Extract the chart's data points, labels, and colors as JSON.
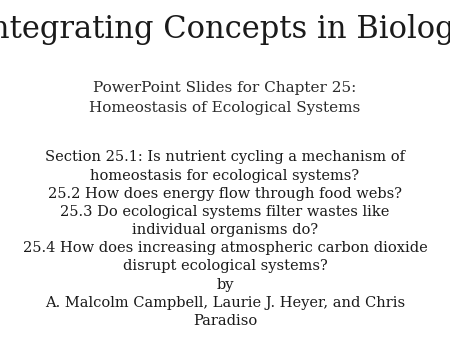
{
  "background_color": "#ffffff",
  "title": "Integrating Concepts in Biology",
  "title_fontsize": 22,
  "title_color": "#1a1a1a",
  "subtitle_line1": "PowerPoint Slides for Chapter 25:",
  "subtitle_line2": "Homeostasis of Ecological Systems",
  "subtitle_fontsize": 11,
  "subtitle_color": "#2a2a2a",
  "body_lines": [
    "Section 25.1: Is nutrient cycling a mechanism of",
    "homeostasis for ecological systems?",
    "25.2 How does energy flow through food webs?",
    "25.3 Do ecological systems filter wastes like",
    "individual organisms do?",
    "25.4 How does increasing atmospheric carbon dioxide",
    "disrupt ecological systems?",
    "by",
    "A. Malcolm Campbell, Laurie J. Heyer, and Chris",
    "Paradiso"
  ],
  "body_fontsize": 10.5,
  "body_color": "#1a1a1a",
  "font_family": "serif"
}
